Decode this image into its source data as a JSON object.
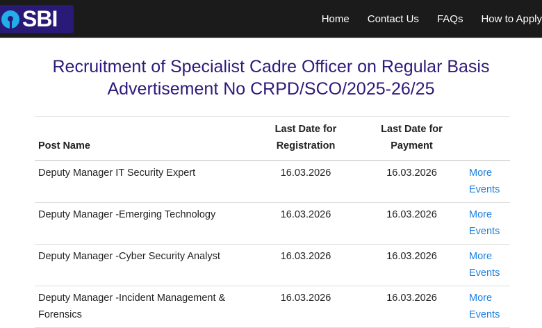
{
  "brand": {
    "logo_text": "SBI"
  },
  "nav": [
    "Home",
    "Contact Us",
    "FAQs",
    "How to Apply"
  ],
  "title": {
    "line1": "Recruitment of Specialist Cadre Officer on Regular Basis",
    "line2": "Advertisement No CRPD/SCO/2025-26/25"
  },
  "table": {
    "headers": [
      "Post Name",
      "Last Date for Registration",
      "Last Date for Payment",
      ""
    ],
    "rows": [
      {
        "post": "Deputy Manager IT Security Expert",
        "reg": "16.03.2026",
        "pay": "16.03.2026",
        "link": "More Events"
      },
      {
        "post": "Deputy Manager -Emerging Technology",
        "reg": "16.03.2026",
        "pay": "16.03.2026",
        "link": "More Events"
      },
      {
        "post": "Deputy Manager -Cyber Security Analyst",
        "reg": "16.03.2026",
        "pay": "16.03.2026",
        "link": "More Events"
      },
      {
        "post": "Deputy Manager -Incident Management & Forensics",
        "reg": "16.03.2026",
        "pay": "16.03.2026",
        "link": "More Events"
      }
    ]
  }
}
